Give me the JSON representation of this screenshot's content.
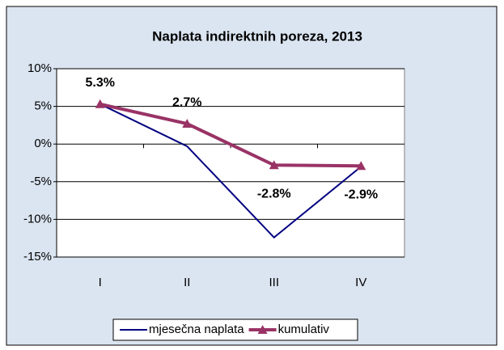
{
  "chart_data": {
    "type": "line",
    "title": "Naplata indirektnih poreza,  2013",
    "categories": [
      "I",
      "II",
      "III",
      "IV"
    ],
    "series": [
      {
        "name": "mjesečna naplata",
        "color": "#000080",
        "values": [
          5.3,
          -0.3,
          -12.4,
          -3.0
        ]
      },
      {
        "name": "kumulativ",
        "color": "#993366",
        "values": [
          5.3,
          2.7,
          -2.8,
          -2.9
        ],
        "value_labels": [
          "5.3%",
          "2.7%",
          "-2.8%",
          "-2.9%"
        ],
        "marker": "triangle"
      }
    ],
    "ylim": [
      -15,
      10
    ],
    "yticks": [
      {
        "value": -15,
        "label": "-15%"
      },
      {
        "value": -10,
        "label": "-10%"
      },
      {
        "value": -5,
        "label": "-5%"
      },
      {
        "value": 0,
        "label": "0%"
      },
      {
        "value": 5,
        "label": "5%"
      },
      {
        "value": 10,
        "label": "10%"
      }
    ],
    "grid": true,
    "legend": "bottom"
  }
}
